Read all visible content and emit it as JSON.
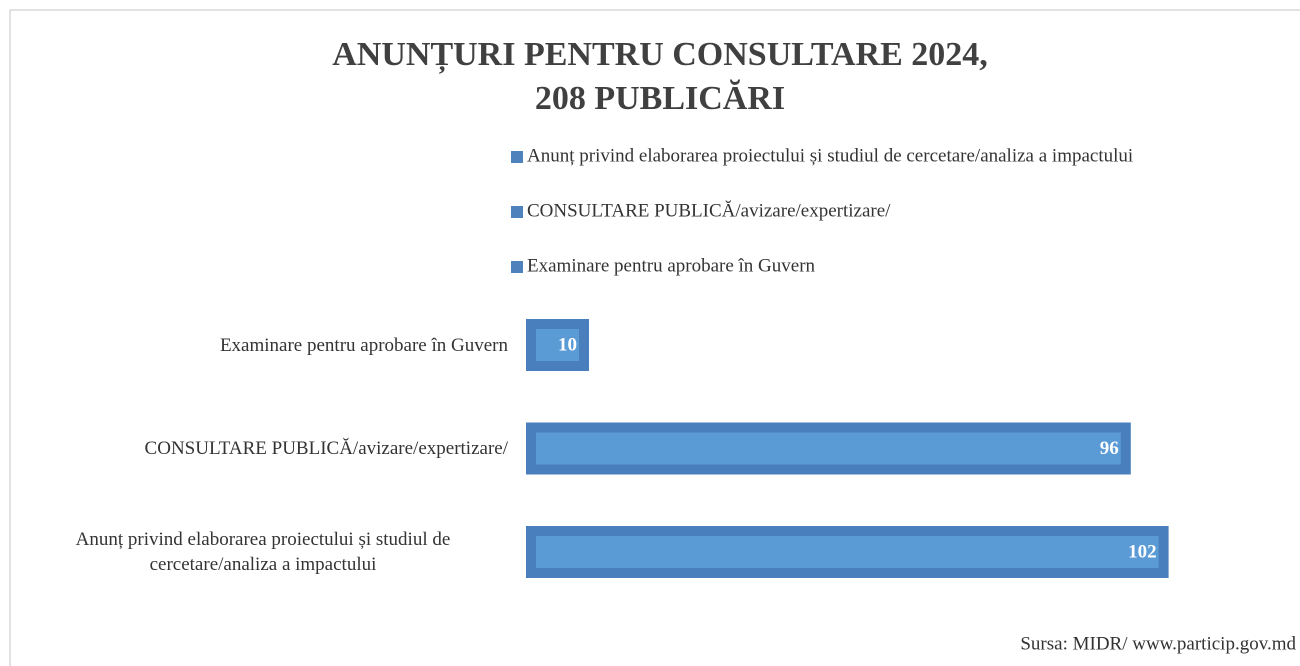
{
  "chart_data": {
    "type": "hbar",
    "title": [
      "ANUNȚURI PENTRU CONSULTARE 2024,",
      "208 PUBLICĂRI"
    ],
    "categories": [
      "Anunț privind elaborarea proiectului și studiul de cercetare/analiza a impactului",
      "CONSULTARE PUBLICĂ/avizare/expertizare/",
      "Examinare pentru aprobare în Guvern"
    ],
    "values": [
      102,
      96,
      10
    ],
    "color": "#5b9bd5",
    "xlim": [
      0,
      120
    ],
    "source": "Sursa: MIDR/ www.particip.gov.md"
  }
}
